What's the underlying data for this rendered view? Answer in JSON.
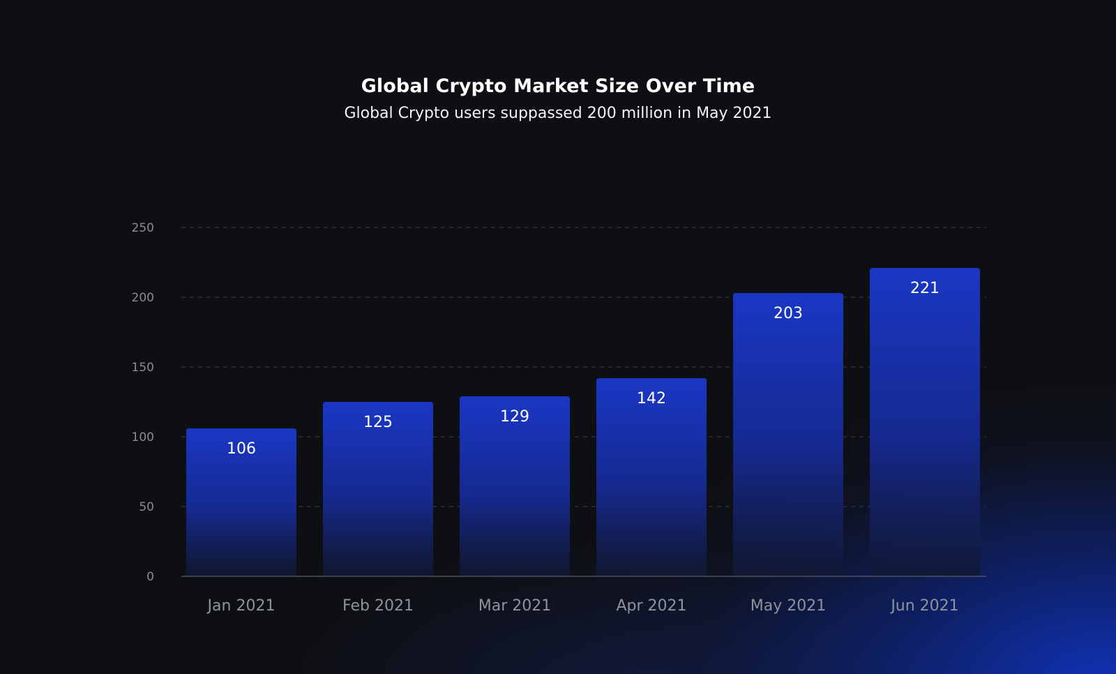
{
  "chart_data": {
    "type": "bar",
    "title": "Global Crypto Market Size Over Time",
    "subtitle": "Global Crypto users suppassed 200 million in May 2021",
    "categories": [
      "Jan 2021",
      "Feb 2021",
      "Mar 2021",
      "Apr 2021",
      "May 2021",
      "Jun 2021"
    ],
    "values": [
      106,
      125,
      129,
      142,
      203,
      221
    ],
    "value_labels": [
      "106",
      "125",
      "129",
      "142",
      "203",
      "221"
    ],
    "yticks": [
      0,
      50,
      100,
      150,
      200,
      250
    ],
    "ytick_labels": [
      "0",
      "50",
      "100",
      "150",
      "200",
      "250"
    ],
    "ylim": [
      0,
      250
    ],
    "xlabel": "",
    "ylabel": "",
    "grid": true,
    "colors": {
      "bar_top": "#1a37c4",
      "bar_bottom": "#121a3a",
      "grid": "#3a3d46",
      "axis": "#5a5d66"
    }
  }
}
